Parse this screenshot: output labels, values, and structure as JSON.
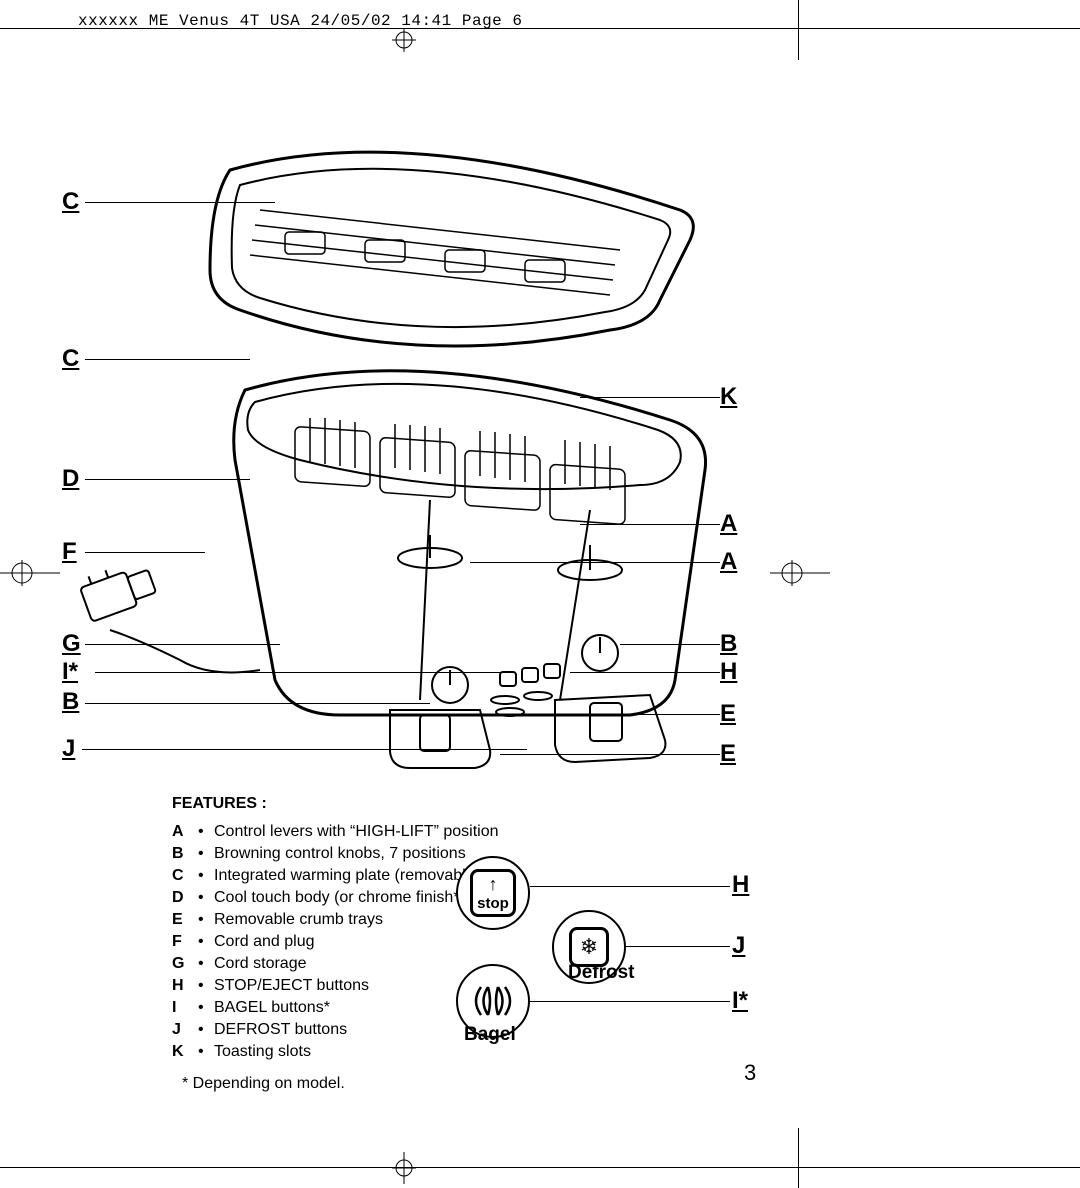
{
  "header": "xxxxxx ME Venus 4T USA  24/05/02 14:41  Page 6",
  "callouts": {
    "left": {
      "C1": "C",
      "C2": "C",
      "D": "D",
      "F": "F",
      "G": "G",
      "Ix": "I*",
      "B1": "B",
      "J1": "J"
    },
    "right": {
      "K": "K",
      "A1": "A",
      "A2": "A",
      "B2": "B",
      "H1": "H",
      "E1": "E",
      "E2": "E"
    }
  },
  "features": {
    "title": "FEATURES :",
    "items": [
      {
        "letter": "A",
        "text": "Control levers with “HIGH-LIFT” position"
      },
      {
        "letter": "B",
        "text": "Browning control knobs, 7 positions"
      },
      {
        "letter": "C",
        "text": "Integrated warming plate (removable)"
      },
      {
        "letter": "D",
        "text": "Cool touch body (or chrome finish*)"
      },
      {
        "letter": "E",
        "text": "Removable crumb trays"
      },
      {
        "letter": "F",
        "text": "Cord and plug"
      },
      {
        "letter": "G",
        "text": "Cord storage"
      },
      {
        "letter": "H",
        "text": "STOP/EJECT buttons"
      },
      {
        "letter": "I",
        "text": "BAGEL buttons*"
      },
      {
        "letter": "J",
        "text": "DEFROST buttons"
      },
      {
        "letter": "K",
        "text": "Toasting slots"
      }
    ],
    "footnote": "* Depending on model."
  },
  "icons": {
    "stop": {
      "symbol": "↑",
      "label": "stop",
      "callout": "H"
    },
    "defrost": {
      "symbol": "❄",
      "label": "Defrost",
      "callout": "J"
    },
    "bagel": {
      "label": "Bagel",
      "callout": "I*"
    }
  },
  "pageNumber": "3",
  "colors": {
    "text": "#000000",
    "background": "#ffffff",
    "line": "#000000"
  },
  "fonts": {
    "body": "Arial, Helvetica, sans-serif",
    "mono": "Courier New, monospace",
    "callout_size_pt": 18,
    "body_size_pt": 12
  }
}
